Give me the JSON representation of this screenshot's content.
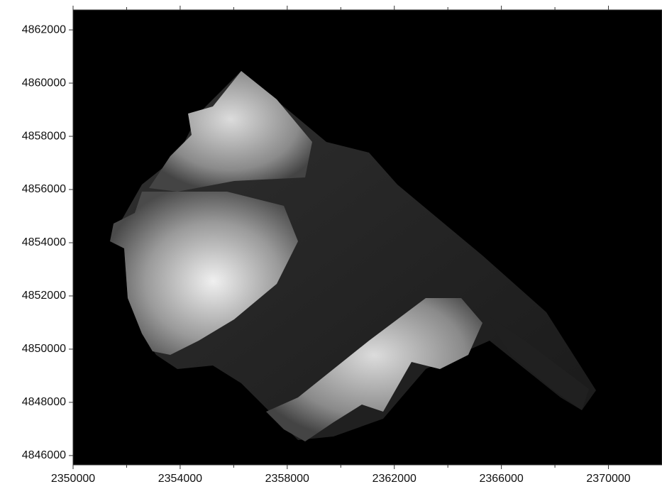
{
  "chart_data": {
    "type": "raster",
    "xlim": [
      2350000,
      2372000
    ],
    "ylim": [
      4845650,
      4862750
    ],
    "xticks": [
      2350000,
      2354000,
      2358000,
      2362000,
      2366000,
      2370000
    ],
    "xminorticks": [
      2352000,
      2356000,
      2360000,
      2364000,
      2368000
    ],
    "yticks": [
      4846000,
      4848000,
      4850000,
      4852000,
      4854000,
      4856000,
      4858000,
      4860000,
      4862000
    ],
    "background": "#000000"
  }
}
